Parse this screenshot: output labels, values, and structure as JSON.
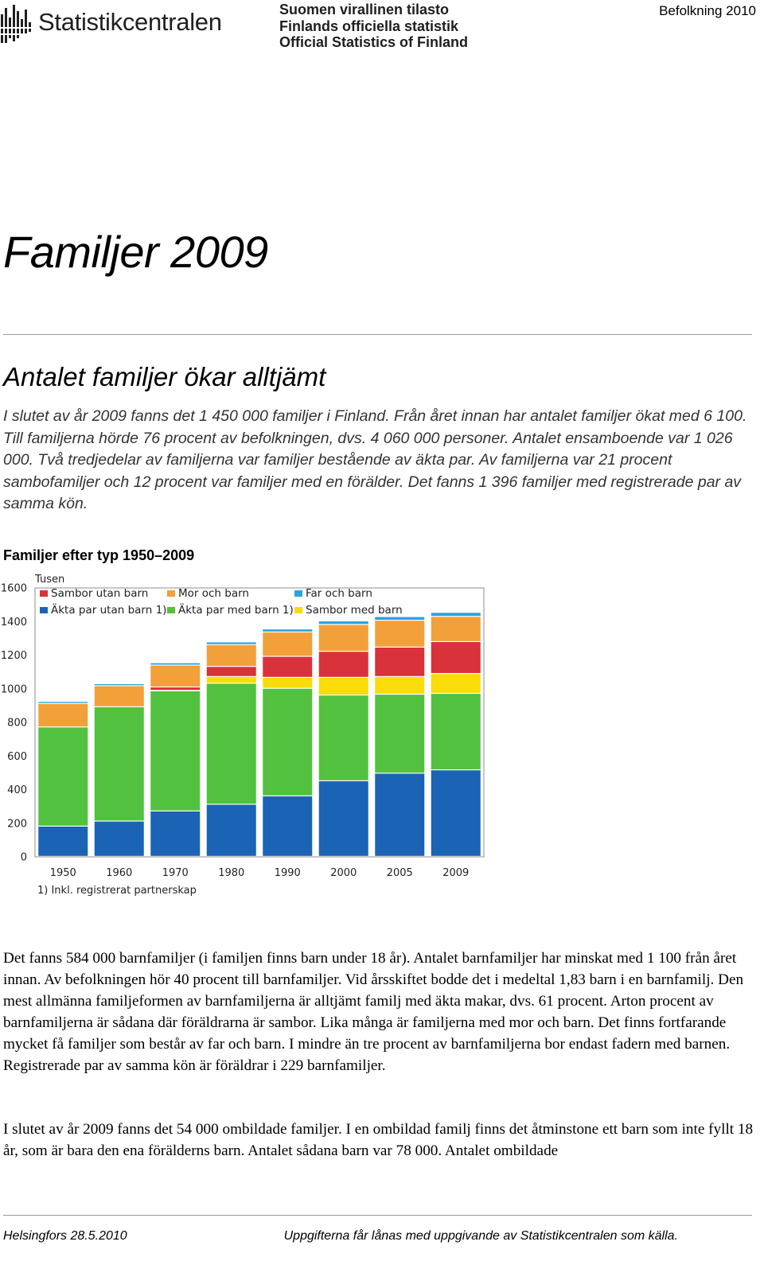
{
  "header": {
    "logo_icon": "statistikcentralen-logo-mark",
    "logo_text": "Statistikcentralen",
    "official_lines": [
      "Suomen virallinen tilasto",
      "Finlands officiella statistik",
      "Official Statistics of Finland"
    ],
    "series_label": "Befolkning 2010"
  },
  "title": "Familjer 2009",
  "section_title": "Antalet familjer ökar alltjämt",
  "lead": "I slutet av år 2009 fanns det 1 450 000 familjer i Finland. Från året innan har antalet familjer ökat med 6 100. Till familjerna hörde 76 procent av befolkningen, dvs. 4 060 000 personer. Antalet ensamboende var 1 026 000. Två tredjedelar av familjerna var familjer bestående av äkta par. Av familjerna var 21 procent sambofamiljer och 12 procent var familjer med en förälder. Det fanns 1 396 familjer med registrerade par av samma kön.",
  "chart_data": {
    "type": "bar",
    "stacked": true,
    "title": "Familjer efter typ 1950–2009",
    "ylabel": "Tusen",
    "ylim": [
      0,
      1600
    ],
    "yticks": [
      0,
      200,
      400,
      600,
      800,
      1000,
      1200,
      1400,
      1600
    ],
    "grid": false,
    "legend_position": "top",
    "categories": [
      "1950",
      "1960",
      "1970",
      "1980",
      "1990",
      "2000",
      "2005",
      "2009"
    ],
    "series": [
      {
        "name": "Äkta par utan barn 1)",
        "color": "#1b63b5",
        "values": [
          180,
          210,
          270,
          310,
          360,
          450,
          495,
          515
        ]
      },
      {
        "name": "Äkta par med barn 1)",
        "color": "#52c13f",
        "values": [
          590,
          680,
          715,
          720,
          640,
          510,
          470,
          455
        ]
      },
      {
        "name": "Sambor med barn",
        "color": "#f9dc0a",
        "values": [
          0,
          0,
          3,
          40,
          65,
          105,
          105,
          118
        ]
      },
      {
        "name": "Sambor utan barn",
        "color": "#d9323a",
        "values": [
          0,
          0,
          20,
          60,
          125,
          155,
          175,
          190
        ]
      },
      {
        "name": "Mor och barn",
        "color": "#f2a03a",
        "values": [
          140,
          125,
          130,
          130,
          145,
          160,
          160,
          150
        ]
      },
      {
        "name": "Far och barn",
        "color": "#29a4dd",
        "values": [
          12,
          12,
          14,
          16,
          18,
          21,
          22,
          24
        ]
      }
    ],
    "footnote": "1) Inkl. registrerat partnerskap"
  },
  "para1": "Det fanns 584 000 barnfamiljer (i familjen finns barn under 18 år). Antalet barnfamiljer har minskat med 1 100 från året innan. Av befolkningen hör 40 procent till barnfamiljer. Vid årsskiftet bodde det i medeltal 1,83 barn i en barnfamilj. Den mest allmänna familjeformen av barnfamiljerna är alltjämt familj med äkta makar, dvs. 61 procent. Arton procent av barnfamiljerna är sådana där föräldrarna är sambor. Lika många är familjerna med mor och barn. Det finns fortfarande mycket få familjer som består av far och barn. I mindre än tre procent av barnfamiljerna bor endast fadern med barnen. Registrerade par av samma kön är föräldrar i 229 barnfamiljer.",
  "para2": "I slutet av år 2009 fanns det 54 000 ombildade familjer. I en ombildad familj finns det åtminstone ett barn som inte fyllt 18 år, som är bara den ena förälderns barn. Antalet sådana barn var 78 000. Antalet ombildade",
  "footer": {
    "left": "Helsingfors 28.5.2010",
    "right": "Uppgifterna får lånas med uppgivande av Statistikcentralen som källa."
  }
}
